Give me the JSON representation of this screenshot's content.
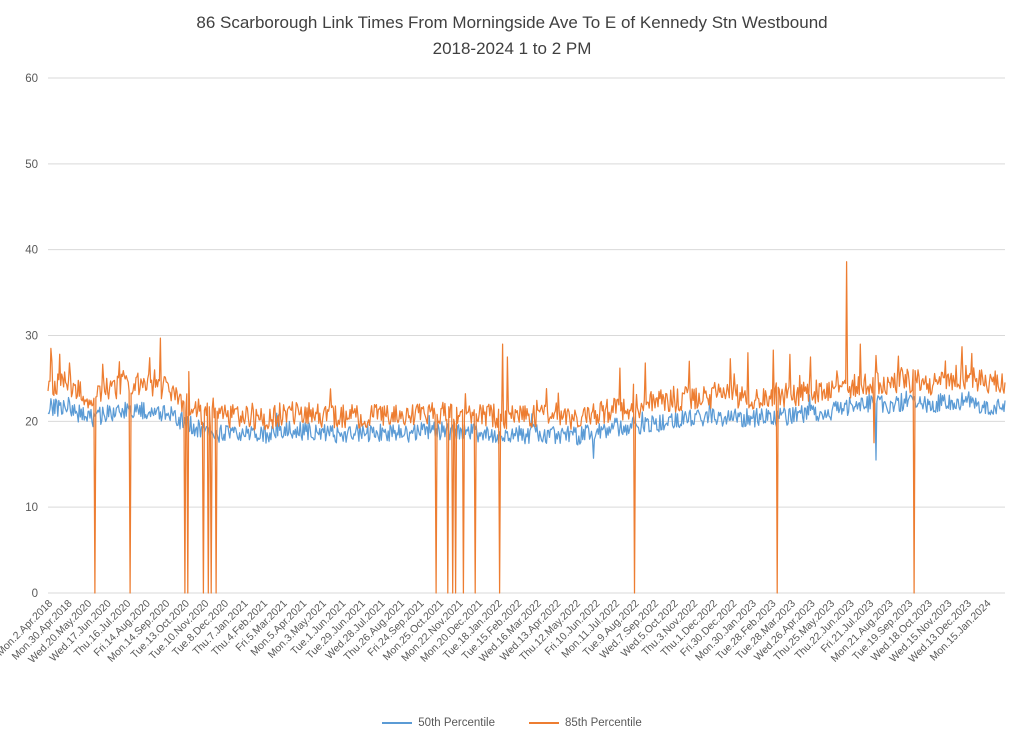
{
  "chart_data": {
    "type": "line",
    "title": "86 Scarborough Link Times From Morningside Ave To E of Kennedy Stn Westbound",
    "subtitle": "2018-2024 1 to 2 PM",
    "xlabel": "",
    "ylabel": "",
    "ylim": [
      0,
      60
    ],
    "y_ticks": [
      0,
      10,
      20,
      30,
      40,
      50,
      60
    ],
    "grid": true,
    "legend_position": "bottom",
    "title_color": "#404040",
    "axis_text_color": "#595959",
    "gridline_color": "#D9D9D9",
    "points_per_label": 20,
    "n_points": 980,
    "x_labels": [
      "Mon.2.Apr.2018",
      "Mon.30.Apr.2018",
      "Wed.20.May.2020",
      "Wed.17.Jun.2020",
      "Thu.16.Jul.2020",
      "Fri.14.Aug.2020",
      "Mon.14.Sep.2020",
      "Tue.13.Oct.2020",
      "Tue.10.Nov.2020",
      "Tue.8.Dec.2020",
      "Thu.7.Jan.2021",
      "Thu.4.Feb.2021",
      "Fri.5.Mar.2021",
      "Mon.5.Apr.2021",
      "Mon.3.May.2021",
      "Tue.1.Jun.2021",
      "Tue.29.Jun.2021",
      "Wed.28.Jul.2021",
      "Thu.26.Aug.2021",
      "Fri.24.Sep.2021",
      "Mon.25.Oct.2021",
      "Mon.22.Nov.2021",
      "Mon.20.Dec.2021",
      "Tue.18.Jan.2022",
      "Tue.15.Feb.2022",
      "Wed.16.Mar.2022",
      "Wed.13.Apr.2022",
      "Thu.12.May.2022",
      "Fri.10.Jun.2022",
      "Mon.11.Jul.2022",
      "Tue.9.Aug.2022",
      "Wed.7.Sep.2022",
      "Wed.5.Oct.2022",
      "Thu.3.Nov.2022",
      "Thu.1.Dec.2022",
      "Fri.30.Dec.2022",
      "Mon.30.Jan.2023",
      "Tue.28.Feb.2023",
      "Tue.28.Mar.2023",
      "Wed.26.Apr.2023",
      "Thu.25.May.2023",
      "Thu.22.Jun.2023",
      "Fri.21.Jul.2023",
      "Mon.21.Aug.2023",
      "Tue.19.Sep.2023",
      "Wed.18.Oct.2023",
      "Wed.15.Nov.2023",
      "Wed.13.Dec.2023",
      "Mon.15.Jan.2024"
    ],
    "series": [
      {
        "name": "50th Percentile",
        "color": "#5B9BD5",
        "noise_amp": 1.1,
        "spike_prob": 0.02,
        "spike_scale": 2.0,
        "anchors": [
          21.5,
          21.8,
          20.2,
          20.8,
          21.2,
          21.3,
          21.0,
          19.8,
          18.8,
          18.6,
          18.6,
          18.4,
          18.9,
          18.9,
          18.6,
          18.5,
          18.6,
          18.6,
          18.5,
          18.8,
          18.9,
          18.8,
          18.6,
          18.5,
          18.4,
          18.5,
          18.5,
          18.2,
          18.8,
          19.3,
          19.5,
          19.8,
          20.0,
          20.3,
          20.4,
          20.4,
          20.4,
          20.5,
          20.6,
          20.9,
          21.2,
          21.8,
          22.2,
          22.0,
          22.3,
          22.0,
          22.2,
          22.5,
          21.8
        ],
        "anomalies": {
          "558": 15.7,
          "847": 15.5
        }
      },
      {
        "name": "85th Percentile",
        "color": "#ED7D31",
        "noise_amp": 1.4,
        "spike_prob": 0.06,
        "spike_scale": 2.6,
        "anchors": [
          24.3,
          24.6,
          22.8,
          23.6,
          24.2,
          24.3,
          23.8,
          22.2,
          20.8,
          20.6,
          20.5,
          20.2,
          20.9,
          20.9,
          20.6,
          20.5,
          20.6,
          20.7,
          20.5,
          20.8,
          20.9,
          20.8,
          20.7,
          20.6,
          20.4,
          20.5,
          20.6,
          20.2,
          20.8,
          21.4,
          21.7,
          22.0,
          22.4,
          22.8,
          22.9,
          22.9,
          22.8,
          23.0,
          23.1,
          23.4,
          23.6,
          24.0,
          24.4,
          24.3,
          24.7,
          24.4,
          24.8,
          25.2,
          24.6
        ],
        "anomalies": {
          "48": 0,
          "84": 0,
          "140": 0,
          "143": 0,
          "159": 0,
          "164": 0,
          "167": 0,
          "172": 0,
          "397": 0,
          "409": 0,
          "414": 0,
          "417": 0,
          "425": 0,
          "437": 0,
          "462": 0,
          "600": 0,
          "746": 0,
          "886": 0,
          "3": 28.5,
          "22": 26.8,
          "104": 27.4,
          "115": 29.7,
          "465": 29.0,
          "470": 27.5,
          "585": 26.2,
          "611": 26.8,
          "656": 27.0,
          "698": 27.3,
          "716": 28.0,
          "742": 28.3,
          "759": 27.8,
          "780": 27.5,
          "817": 38.6,
          "831": 29.0,
          "845": 17.5,
          "870": 27.6,
          "935": 28.7,
          "945": 27.9
        }
      }
    ]
  }
}
